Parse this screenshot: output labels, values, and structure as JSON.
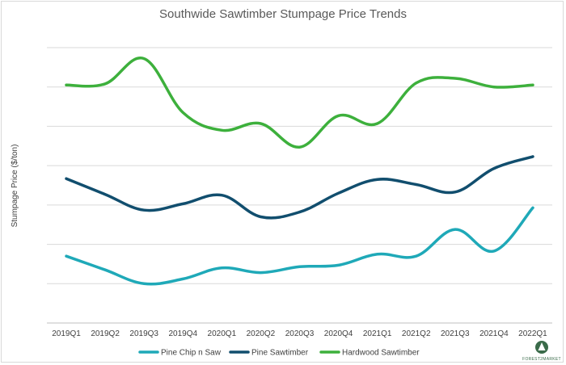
{
  "chart_data": {
    "type": "line",
    "title": "Southwide Sawtimber Stumpage Price Trends",
    "xlabel": "",
    "ylabel": "Stumpage Price ($/ton)",
    "categories": [
      "2019Q1",
      "2019Q2",
      "2019Q3",
      "2019Q4",
      "2020Q1",
      "2020Q2",
      "2020Q3",
      "2020Q4",
      "2021Q1",
      "2021Q2",
      "2021Q3",
      "2021Q4",
      "2022Q1"
    ],
    "ylim": [
      0,
      7
    ],
    "grid": true,
    "y_tick_labels_shown": false,
    "legend_position": "bottom",
    "series": [
      {
        "name": "Pine Chip n Saw",
        "color": "#1fa9b8",
        "values": [
          1.7,
          1.35,
          1.0,
          1.12,
          1.4,
          1.28,
          1.43,
          1.47,
          1.75,
          1.7,
          2.38,
          1.83,
          2.93
        ]
      },
      {
        "name": "Pine Sawtimber",
        "color": "#114e6e",
        "values": [
          3.67,
          3.27,
          2.87,
          3.03,
          3.25,
          2.7,
          2.82,
          3.3,
          3.65,
          3.52,
          3.33,
          3.93,
          4.23
        ]
      },
      {
        "name": "Hardwood Sawtimber",
        "color": "#3db03c",
        "values": [
          6.05,
          6.08,
          6.72,
          5.35,
          4.9,
          5.07,
          4.47,
          5.27,
          5.07,
          6.1,
          6.22,
          6.0,
          6.05
        ]
      }
    ]
  },
  "logo": {
    "name": "forest2market-logo",
    "text": "FOREST2MARKET",
    "color": "#3a6b4a"
  }
}
